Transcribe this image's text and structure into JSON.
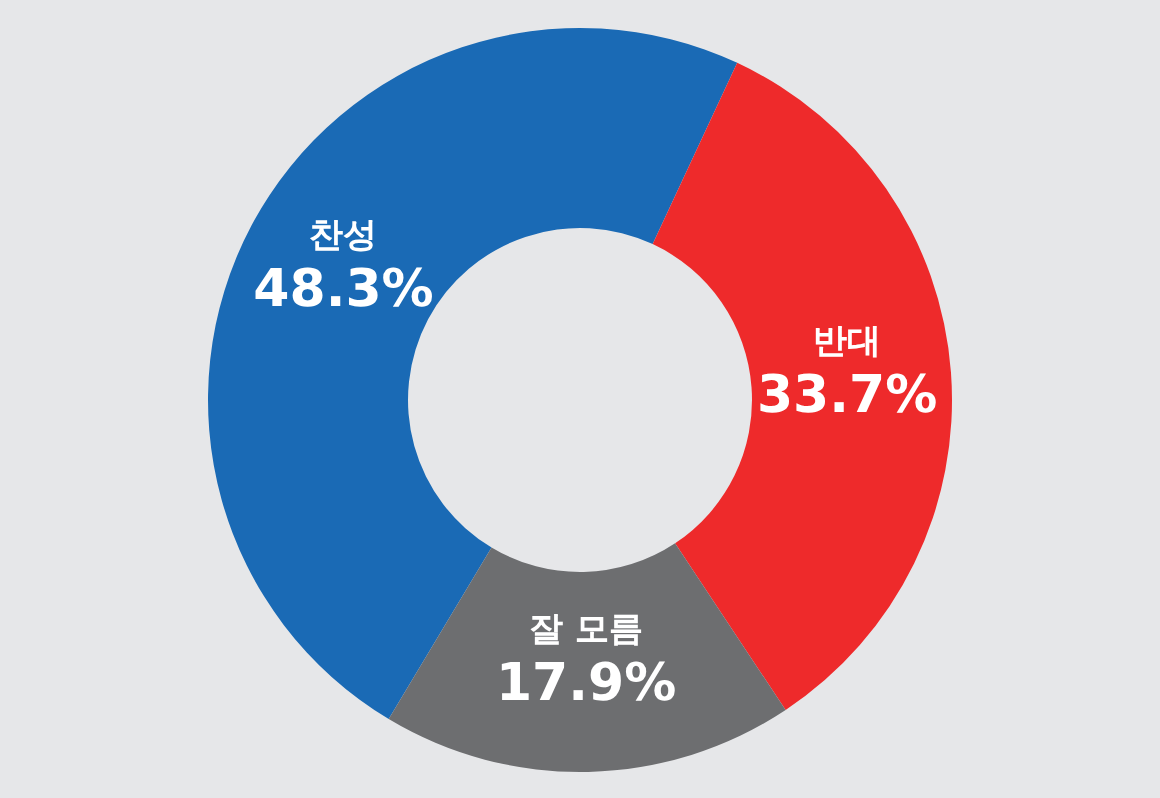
{
  "chart_data": {
    "type": "donut",
    "categories": [
      "찬성",
      "반대",
      "잘 모름"
    ],
    "values": [
      48.3,
      33.7,
      17.9
    ],
    "colors": [
      "#1a6ab5",
      "#ee2a2b",
      "#6d6e70"
    ],
    "value_labels": [
      "48.3%",
      "33.7%",
      "17.9%"
    ]
  }
}
